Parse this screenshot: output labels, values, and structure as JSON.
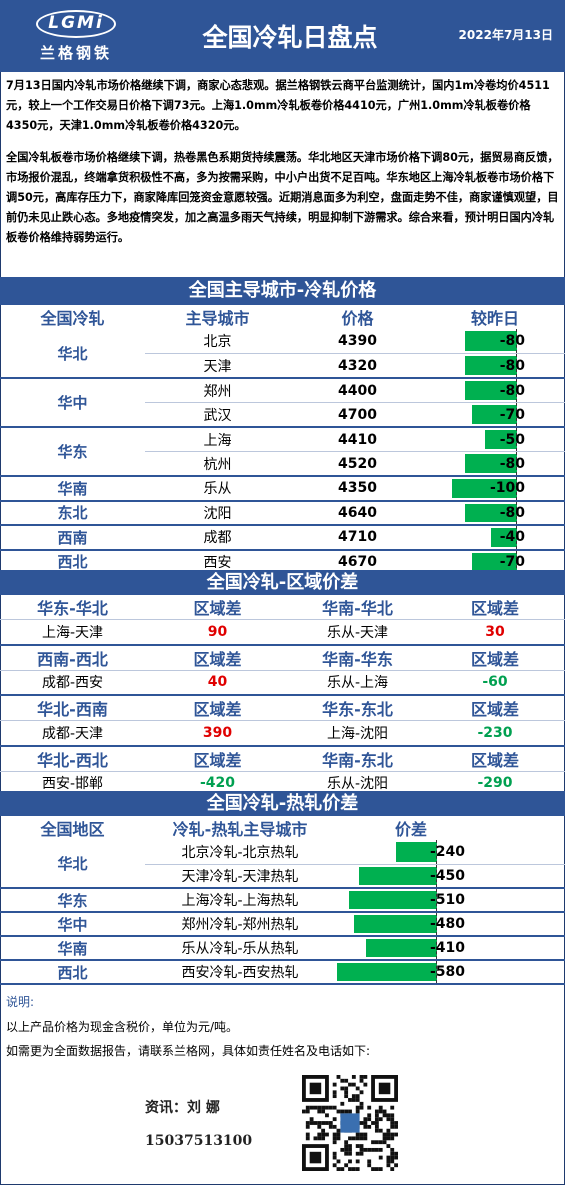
{
  "header": {
    "logo_text": "LGMi",
    "logo_cn": "兰格钢铁",
    "title": "全国冷轧日盘点",
    "date": "2022年7月13日"
  },
  "summary": {
    "p1": "7月13日国内冷轧市场价格继续下调，商家心态悲观。据兰格钢铁云商平台监测统计，国内1m冷卷均价4511元，较上一个工作交易日价格下调73元。上海1.0mm冷轧板卷价格4410元，广州1.0mm冷轧板卷价格4350元，天津1.0mm冷轧板卷价格4320元。",
    "p2": "全国冷轧板卷市场价格继续下调，热卷黑色系期货持续震荡。华北地区天津市场价格下调80元，据贸易商反馈，市场报价混乱，终端拿货积极性不高，多为按需采购，中小户出货不足百吨。华东地区上海冷轧板卷市场价格下调50元，高库存压力下，商家降库回笼资金意愿较强。近期消息面多为利空，盘面走势不佳，商家谨慎观望，目前仍未见止跌心态。多地疫情突发，加之高温多雨天气持续，明显抑制下游需求。综合来看，预计明日国内冷轧板卷价格维持弱势运行。"
  },
  "section1": {
    "title": "全国主导城市-冷轧价格",
    "headers": [
      "全国冷轧",
      "主导城市",
      "价格",
      "较昨日"
    ],
    "rows": [
      {
        "region": "华北",
        "city": "北京",
        "price": "4390",
        "change": "-80",
        "change_value": -80
      },
      {
        "region": "",
        "city": "天津",
        "price": "4320",
        "change": "-80",
        "change_value": -80
      },
      {
        "region": "华中",
        "city": "郑州",
        "price": "4400",
        "change": "-80",
        "change_value": -80
      },
      {
        "region": "",
        "city": "武汉",
        "price": "4700",
        "change": "-70",
        "change_value": -70
      },
      {
        "region": "华东",
        "city": "上海",
        "price": "4410",
        "change": "-50",
        "change_value": -50
      },
      {
        "region": "",
        "city": "杭州",
        "price": "4520",
        "change": "-80",
        "change_value": -80
      },
      {
        "region": "华南",
        "city": "乐从",
        "price": "4350",
        "change": "-100",
        "change_value": -100
      },
      {
        "region": "东北",
        "city": "沈阳",
        "price": "4640",
        "change": "-80",
        "change_value": -80
      },
      {
        "region": "西南",
        "city": "成都",
        "price": "4710",
        "change": "-40",
        "change_value": -40
      },
      {
        "region": "西北",
        "city": "西安",
        "price": "4670",
        "change": "-70",
        "change_value": -70
      }
    ]
  },
  "section2": {
    "title": "全国冷轧-区域价差",
    "diff_label": "区域差",
    "pairs": [
      {
        "left_title": "华东-华北",
        "left_pair": "上海-天津",
        "left_value": "90",
        "left_color": "#e00000",
        "right_title": "华南-华北",
        "right_pair": "乐从-天津",
        "right_value": "30",
        "right_color": "#e00000"
      },
      {
        "left_title": "西南-西北",
        "left_pair": "成都-西安",
        "left_value": "40",
        "left_color": "#e00000",
        "right_title": "华南-华东",
        "right_pair": "乐从-上海",
        "right_value": "-60",
        "right_color": "#00a050"
      },
      {
        "left_title": "华北-西南",
        "left_pair": "成都-天津",
        "left_value": "390",
        "left_color": "#e00000",
        "right_title": "华东-东北",
        "right_pair": "上海-沈阳",
        "right_value": "-230",
        "right_color": "#00a050"
      },
      {
        "left_title": "华北-西北",
        "left_pair": "西安-邯郸",
        "left_value": "-420",
        "left_color": "#00a050",
        "right_title": "华南-东北",
        "right_pair": "乐从-沈阳",
        "right_value": "-290",
        "right_color": "#00a050"
      }
    ]
  },
  "section3": {
    "title": "全国冷轧-热轧价差",
    "headers": [
      "全国地区",
      "冷轧-热轧主导城市",
      "价差"
    ],
    "rows": [
      {
        "region": "华北",
        "pair": "北京冷轧-北京热轧",
        "diff": "-240",
        "diff_value": -240
      },
      {
        "region": "",
        "pair": "天津冷轧-天津热轧",
        "diff": "-450",
        "diff_value": -450
      },
      {
        "region": "华东",
        "pair": "上海冷轧-上海热轧",
        "diff": "-510",
        "diff_value": -510
      },
      {
        "region": "华中",
        "pair": "郑州冷轧-郑州热轧",
        "diff": "-480",
        "diff_value": -480
      },
      {
        "region": "华南",
        "pair": "乐从冷轧-乐从热轧",
        "diff": "-410",
        "diff_value": -410
      },
      {
        "region": "西北",
        "pair": "西安冷轧-西安热轧",
        "diff": "-580",
        "diff_value": -580
      }
    ]
  },
  "notes": {
    "label": "说明:",
    "line1": "以上产品价格为现金含税价，单位为元/吨。",
    "line2": "如需更为全面数据报告，请联系兰格网，具体如责任姓名及电话如下:"
  },
  "contact": {
    "name": "资讯：刘 娜",
    "phone": "15037513100"
  },
  "colors": {
    "brand_blue": "#2f5597",
    "bar_green": "#00b050",
    "up_red": "#e00000",
    "down_green": "#00a050"
  }
}
